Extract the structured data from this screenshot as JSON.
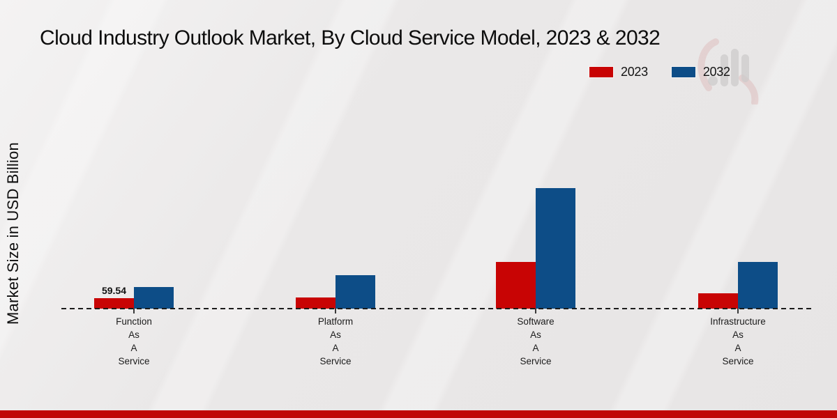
{
  "title": "Cloud Industry Outlook Market, By Cloud Service Model, 2023 & 2032",
  "y_axis_label": "Market Size in USD Billion",
  "legend": [
    {
      "label": "2023",
      "color": "#c80404"
    },
    {
      "label": "2032",
      "color": "#0d4d87"
    }
  ],
  "watermark": "market-research-future-logo",
  "footer": {
    "bar_color": "#c00606"
  },
  "chart_data": {
    "type": "bar",
    "title": "Cloud Industry Outlook Market, By Cloud Service Model, 2023 & 2032",
    "xlabel": "",
    "ylabel": "Market Size in USD Billion",
    "ylim": [
      0,
      750
    ],
    "grid": false,
    "legend_position": "top-right",
    "baseline_style": "dashed",
    "categories": [
      "Function As A Service",
      "Platform As A Service",
      "Software As A Service",
      "Infrastructure As A Service"
    ],
    "categories_display": [
      [
        "Function",
        "As",
        "A",
        "Service"
      ],
      [
        "Platform",
        "As",
        "A",
        "Service"
      ],
      [
        "Software",
        "As",
        "A",
        "Service"
      ],
      [
        "Infrastructure",
        "As",
        "A",
        "Service"
      ]
    ],
    "series": [
      {
        "name": "2023",
        "color": "#c80404",
        "values": [
          59.54,
          63,
          265,
          87
        ]
      },
      {
        "name": "2032",
        "color": "#0d4d87",
        "values": [
          123,
          190,
          688,
          266
        ]
      }
    ],
    "annotations": [
      {
        "text": "59.54",
        "category_index": 0,
        "series_index": 0
      }
    ]
  }
}
